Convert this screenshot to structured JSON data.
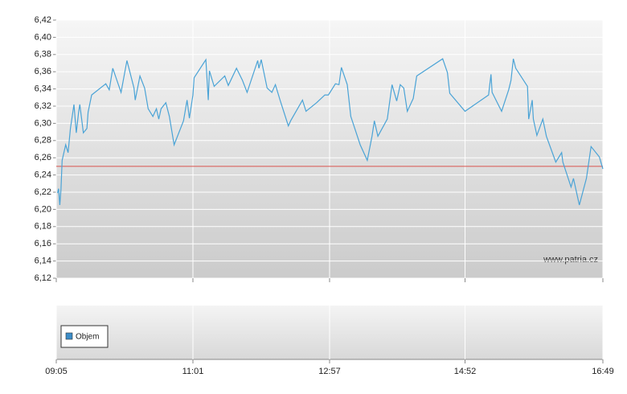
{
  "chart_data": [
    {
      "type": "line",
      "annotation": "www.patria.cz",
      "xlim": [
        545,
        1009
      ],
      "xticks": [
        {
          "value": 545,
          "label": "09:05"
        },
        {
          "value": 661,
          "label": "11:01"
        },
        {
          "value": 777,
          "label": "12:57"
        },
        {
          "value": 892,
          "label": "14:52"
        },
        {
          "value": 1009,
          "label": "16:49"
        }
      ],
      "ylim": [
        6.12,
        6.42
      ],
      "yticks": [
        {
          "value": 6.12,
          "label": "6,12"
        },
        {
          "value": 6.14,
          "label": "6,14"
        },
        {
          "value": 6.16,
          "label": "6,16"
        },
        {
          "value": 6.18,
          "label": "6,18"
        },
        {
          "value": 6.2,
          "label": "6,20"
        },
        {
          "value": 6.22,
          "label": "6,22"
        },
        {
          "value": 6.24,
          "label": "6,24"
        },
        {
          "value": 6.26,
          "label": "6,26"
        },
        {
          "value": 6.28,
          "label": "6,28"
        },
        {
          "value": 6.3,
          "label": "6,30"
        },
        {
          "value": 6.32,
          "label": "6,32"
        },
        {
          "value": 6.34,
          "label": "6,34"
        },
        {
          "value": 6.36,
          "label": "6,36"
        },
        {
          "value": 6.38,
          "label": "6,38"
        },
        {
          "value": 6.4,
          "label": "6,40"
        },
        {
          "value": 6.42,
          "label": "6,42"
        }
      ],
      "grid": true,
      "reference_line": {
        "value": 6.25,
        "color": "#d9534f"
      },
      "color": "#4aa3d6",
      "x": [
        546,
        547,
        548,
        549,
        550,
        553,
        555,
        557,
        560,
        562,
        564,
        565,
        568,
        571,
        572,
        575,
        587,
        590,
        593,
        600,
        605,
        611,
        612,
        616,
        620,
        623,
        627,
        630,
        632,
        634,
        638,
        641,
        645,
        653,
        656,
        658,
        661,
        662,
        672,
        674,
        675,
        679,
        688,
        691,
        698,
        703,
        707,
        716,
        717,
        719,
        724,
        728,
        731,
        735,
        742,
        744,
        754,
        757,
        766,
        773,
        776,
        782,
        785,
        787,
        792,
        795,
        803,
        809,
        813,
        815,
        818,
        826,
        830,
        834,
        837,
        840,
        843,
        848,
        851,
        873,
        877,
        879,
        892,
        912,
        914,
        915,
        923,
        929,
        931,
        933,
        935,
        945,
        946,
        949,
        950,
        953,
        958,
        961,
        969,
        974,
        975,
        982,
        984,
        989,
        995,
        999,
        1006,
        1009
      ],
      "values": [
        6.219,
        6.224,
        6.205,
        6.224,
        6.257,
        6.275,
        6.266,
        6.294,
        6.322,
        6.289,
        6.313,
        6.322,
        6.289,
        6.294,
        6.313,
        6.333,
        6.346,
        6.339,
        6.364,
        6.336,
        6.373,
        6.341,
        6.327,
        6.355,
        6.341,
        6.317,
        6.308,
        6.317,
        6.305,
        6.317,
        6.324,
        6.308,
        6.275,
        6.303,
        6.327,
        6.306,
        6.333,
        6.353,
        6.374,
        6.327,
        6.361,
        6.343,
        6.355,
        6.344,
        6.364,
        6.35,
        6.336,
        6.373,
        6.364,
        6.374,
        6.341,
        6.336,
        6.345,
        6.327,
        6.297,
        6.303,
        6.327,
        6.314,
        6.324,
        6.333,
        6.333,
        6.346,
        6.345,
        6.365,
        6.345,
        6.308,
        6.275,
        6.257,
        6.285,
        6.303,
        6.285,
        6.305,
        6.345,
        6.326,
        6.345,
        6.341,
        6.314,
        6.329,
        6.355,
        6.375,
        6.359,
        6.335,
        6.314,
        6.333,
        6.357,
        6.336,
        6.314,
        6.339,
        6.35,
        6.375,
        6.364,
        6.343,
        6.305,
        6.327,
        6.305,
        6.286,
        6.305,
        6.285,
        6.255,
        6.266,
        6.255,
        6.226,
        6.236,
        6.205,
        6.236,
        6.273,
        6.261,
        6.247
      ]
    },
    {
      "type": "bar",
      "series": [
        {
          "name": "Objem",
          "color": "#3c8dc8",
          "values": []
        }
      ]
    }
  ]
}
